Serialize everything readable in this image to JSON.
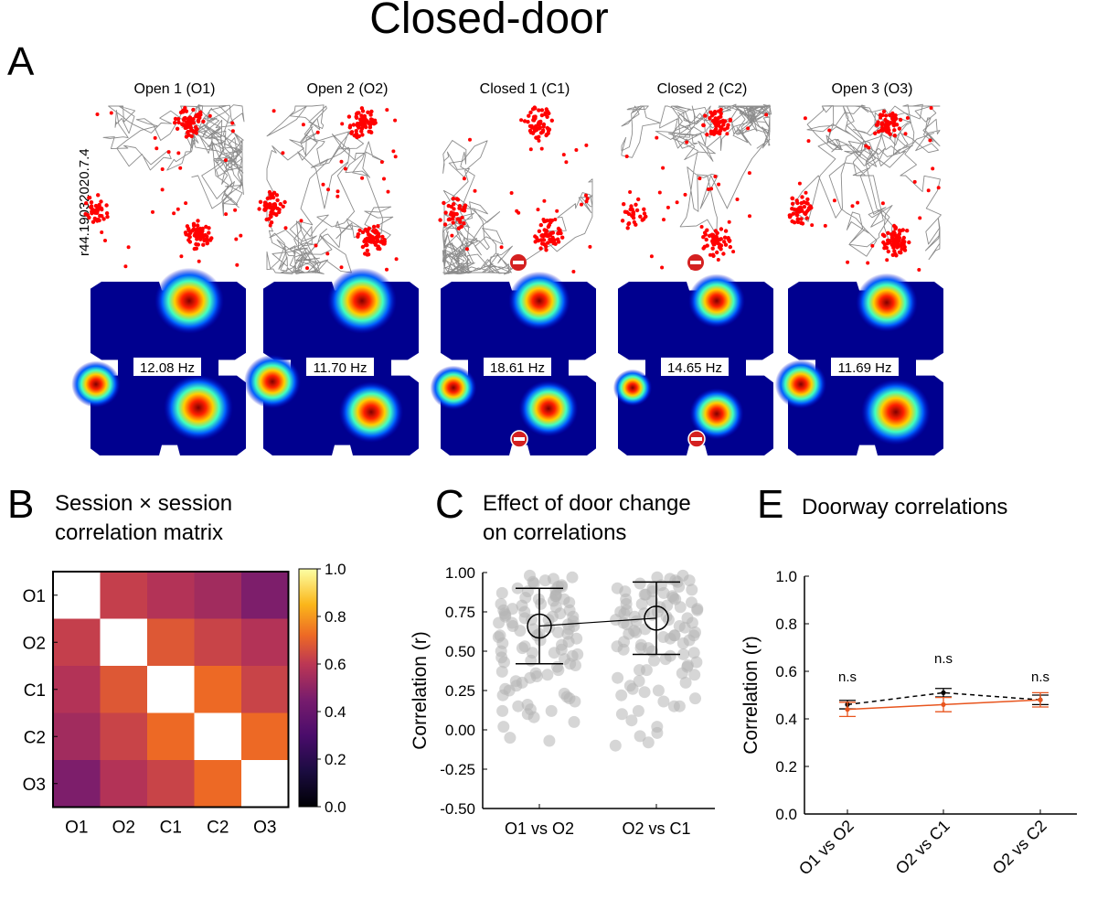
{
  "figure": {
    "title": "Closed-door",
    "panel_a": {
      "letter": "A",
      "cell_id": "r44.19032020.7.4",
      "sessions": [
        {
          "label": "Open 1 (O1)",
          "peak_rate": "12.08 Hz",
          "door_closed": false
        },
        {
          "label": "Open 2 (O2)",
          "peak_rate": "11.70 Hz",
          "door_closed": false
        },
        {
          "label": "Closed 1 (C1)",
          "peak_rate": "18.61 Hz",
          "door_closed": true
        },
        {
          "label": "Closed 2 (C2)",
          "peak_rate": "14.65 Hz",
          "door_closed": true
        },
        {
          "label": "Open 3 (O3)",
          "peak_rate": "11.69 Hz",
          "door_closed": false
        }
      ],
      "colors": {
        "path": "#8c8c8c",
        "spikes": "#ff0000",
        "heat_low": "#00008f",
        "door_icon": "#d42020"
      }
    },
    "panel_b": {
      "letter": "B",
      "title_line1": "Session × session",
      "title_line2": "correlation matrix"
    },
    "panel_c": {
      "letter": "C",
      "title_line1": "Effect of door change",
      "title_line2": "on correlations"
    },
    "panel_e": {
      "letter": "E",
      "title": "Doorway correlations"
    }
  },
  "chart_data": [
    {
      "type": "heatmap",
      "panel": "B",
      "rows": [
        "O1",
        "O2",
        "C1",
        "C2",
        "O3"
      ],
      "cols": [
        "O1",
        "O2",
        "C1",
        "C2",
        "O3"
      ],
      "values": [
        [
          null,
          0.62,
          0.58,
          0.54,
          0.46
        ],
        [
          0.62,
          null,
          0.68,
          0.63,
          0.58
        ],
        [
          0.58,
          0.68,
          null,
          0.72,
          0.63
        ],
        [
          0.54,
          0.63,
          0.72,
          null,
          0.72
        ],
        [
          0.46,
          0.58,
          0.63,
          0.72,
          null
        ]
      ],
      "colorbar_range": [
        0,
        1
      ],
      "colorbar_ticks": [
        "1.0",
        "0.8",
        "0.6",
        "0.4",
        "0.2",
        "0.0"
      ],
      "colormap": "inferno"
    },
    {
      "type": "scatter",
      "panel": "C",
      "categories": [
        "O1 vs O2",
        "O2 vs C1"
      ],
      "ylabel": "Correlation (r)",
      "ylim": [
        -0.5,
        1.0
      ],
      "yticks": [
        "1.00",
        "0.75",
        "0.50",
        "0.25",
        "0.00",
        "-0.25",
        "-0.50"
      ],
      "means": [
        0.66,
        0.71
      ],
      "sd_upper": [
        0.9,
        0.94
      ],
      "sd_lower": [
        0.42,
        0.48
      ],
      "point_color": "#b4b4b4",
      "points": [
        [
          0.92,
          0.95,
          0.97,
          0.98,
          0.96,
          0.94,
          0.93,
          0.91,
          0.9,
          0.89,
          0.88,
          0.87,
          0.86,
          0.85,
          0.85,
          0.84,
          0.83,
          0.82,
          0.81,
          0.8,
          0.8,
          0.79,
          0.78,
          0.77,
          0.76,
          0.76,
          0.75,
          0.74,
          0.74,
          0.73,
          0.72,
          0.72,
          0.71,
          0.7,
          0.7,
          0.69,
          0.68,
          0.68,
          0.67,
          0.66,
          0.66,
          0.65,
          0.64,
          0.64,
          0.63,
          0.62,
          0.61,
          0.6,
          0.6,
          0.59,
          0.58,
          0.57,
          0.56,
          0.55,
          0.54,
          0.53,
          0.52,
          0.51,
          0.5,
          0.49,
          0.48,
          0.47,
          0.46,
          0.45,
          0.44,
          0.43,
          0.42,
          0.41,
          0.4,
          0.38,
          0.37,
          0.36,
          0.34,
          0.33,
          0.31,
          0.3,
          0.28,
          0.26,
          0.25,
          0.23,
          0.22,
          0.2,
          0.18,
          0.16,
          0.15,
          0.13,
          0.12,
          0.1,
          0.08,
          0.05,
          0.02,
          -0.05,
          -0.07,
          0.91,
          0.83,
          0.72,
          0.61,
          0.49,
          0.35,
          0.21,
          0.12
        ],
        [
          0.98,
          0.97,
          0.96,
          0.95,
          0.94,
          0.93,
          0.92,
          0.91,
          0.9,
          0.9,
          0.89,
          0.88,
          0.87,
          0.86,
          0.86,
          0.85,
          0.84,
          0.83,
          0.83,
          0.82,
          0.81,
          0.8,
          0.8,
          0.79,
          0.78,
          0.78,
          0.77,
          0.76,
          0.76,
          0.75,
          0.74,
          0.74,
          0.73,
          0.72,
          0.72,
          0.71,
          0.7,
          0.7,
          0.69,
          0.68,
          0.68,
          0.67,
          0.66,
          0.65,
          0.64,
          0.63,
          0.62,
          0.61,
          0.6,
          0.6,
          0.59,
          0.58,
          0.57,
          0.56,
          0.55,
          0.54,
          0.53,
          0.52,
          0.51,
          0.5,
          0.49,
          0.48,
          0.47,
          0.45,
          0.44,
          0.43,
          0.41,
          0.4,
          0.38,
          0.36,
          0.35,
          0.33,
          0.31,
          0.3,
          0.28,
          0.26,
          0.24,
          0.22,
          0.2,
          0.18,
          0.15,
          0.12,
          0.1,
          0.06,
          0.02,
          -0.02,
          -0.04,
          -0.08,
          -0.1,
          0.62,
          0.6,
          0.15,
          0.38,
          0.75,
          0.88,
          0.52,
          0.25,
          0.95
        ]
      ]
    },
    {
      "type": "line",
      "panel": "E",
      "categories": [
        "O1 vs O2",
        "O2 vs C1",
        "O2 vs C2"
      ],
      "ylabel": "Correlation (r)",
      "ylim": [
        0,
        1
      ],
      "yticks": [
        "1.0",
        "0.8",
        "0.6",
        "0.4",
        "0.2",
        "0.0"
      ],
      "annotations": [
        "n.s",
        "n.s",
        "n.s"
      ],
      "series": [
        {
          "color": "#000000",
          "dash": true,
          "values": [
            0.46,
            0.51,
            0.48
          ],
          "err": [
            0.018,
            0.018,
            0.02
          ]
        },
        {
          "color": "#e8551e",
          "dash": false,
          "values": [
            0.44,
            0.46,
            0.48
          ],
          "err": [
            0.03,
            0.03,
            0.03
          ]
        }
      ]
    }
  ]
}
